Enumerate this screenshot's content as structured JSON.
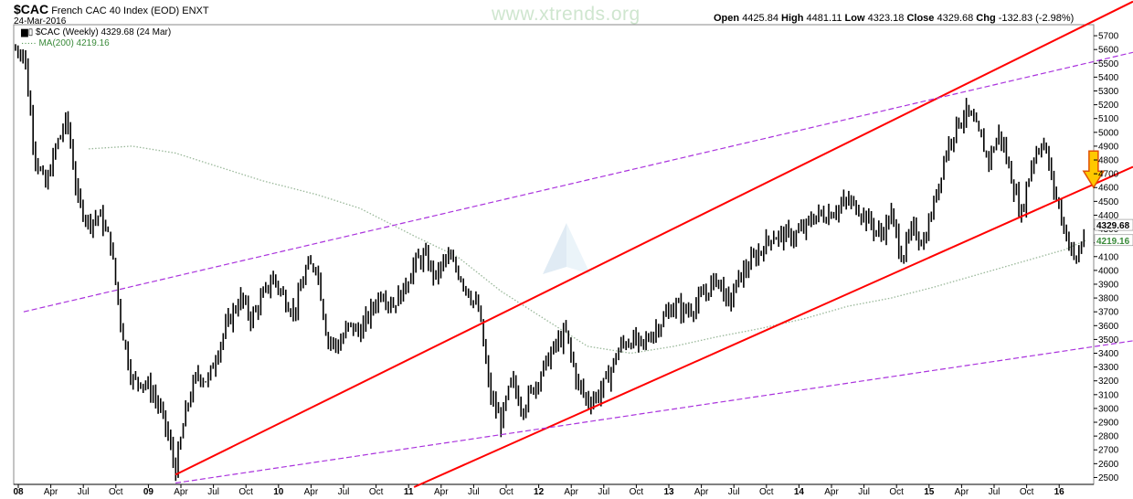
{
  "header": {
    "symbol": "$CAC",
    "name": "French CAC 40 Index (EOD)",
    "exchange": "ENXT",
    "date": "24-Mar-2016",
    "watermark": "www.xtrends.org",
    "ohlc": {
      "open_label": "Open",
      "open": "4425.84",
      "high_label": "High",
      "high": "4481.11",
      "low_label": "Low",
      "low": "4323.18",
      "close_label": "Close",
      "close": "4329.68",
      "chg_label": "Chg",
      "chg": "-132.83 (-2.98%)"
    }
  },
  "legend": {
    "price": "$CAC (Weekly) 4329.68 (24 Mar)",
    "ma": "MA(200) 4219.16"
  },
  "chart_data": {
    "type": "line",
    "title": "$CAC French CAC 40 Index (EOD) ENXT",
    "frequency": "Weekly",
    "x_ticks": [
      {
        "label": "08",
        "year": 2008,
        "m": 0
      },
      {
        "label": "Apr",
        "year": 2008,
        "m": 3
      },
      {
        "label": "Jul",
        "year": 2008,
        "m": 6
      },
      {
        "label": "Oct",
        "year": 2008,
        "m": 9
      },
      {
        "label": "09",
        "year": 2009,
        "m": 0
      },
      {
        "label": "Apr",
        "year": 2009,
        "m": 3
      },
      {
        "label": "Jul",
        "year": 2009,
        "m": 6
      },
      {
        "label": "Oct",
        "year": 2009,
        "m": 9
      },
      {
        "label": "10",
        "year": 2010,
        "m": 0
      },
      {
        "label": "Apr",
        "year": 2010,
        "m": 3
      },
      {
        "label": "Jul",
        "year": 2010,
        "m": 6
      },
      {
        "label": "Oct",
        "year": 2010,
        "m": 9
      },
      {
        "label": "11",
        "year": 2011,
        "m": 0
      },
      {
        "label": "Apr",
        "year": 2011,
        "m": 3
      },
      {
        "label": "Jul",
        "year": 2011,
        "m": 6
      },
      {
        "label": "Oct",
        "year": 2011,
        "m": 9
      },
      {
        "label": "12",
        "year": 2012,
        "m": 0
      },
      {
        "label": "Apr",
        "year": 2012,
        "m": 3
      },
      {
        "label": "Jul",
        "year": 2012,
        "m": 6
      },
      {
        "label": "Oct",
        "year": 2012,
        "m": 9
      },
      {
        "label": "13",
        "year": 2013,
        "m": 0
      },
      {
        "label": "Apr",
        "year": 2013,
        "m": 3
      },
      {
        "label": "Jul",
        "year": 2013,
        "m": 6
      },
      {
        "label": "Oct",
        "year": 2013,
        "m": 9
      },
      {
        "label": "14",
        "year": 2014,
        "m": 0
      },
      {
        "label": "Apr",
        "year": 2014,
        "m": 3
      },
      {
        "label": "Jul",
        "year": 2014,
        "m": 6
      },
      {
        "label": "Oct",
        "year": 2014,
        "m": 9
      },
      {
        "label": "15",
        "year": 2015,
        "m": 0
      },
      {
        "label": "Apr",
        "year": 2015,
        "m": 3
      },
      {
        "label": "Jul",
        "year": 2015,
        "m": 6
      },
      {
        "label": "Oct",
        "year": 2015,
        "m": 9
      },
      {
        "label": "16",
        "year": 2016,
        "m": 0
      }
    ],
    "y_ticks": [
      2500,
      2600,
      2700,
      2800,
      2900,
      3000,
      3100,
      3200,
      3300,
      3400,
      3500,
      3600,
      3700,
      3800,
      3900,
      4000,
      4100,
      4200,
      4300,
      4400,
      4500,
      4600,
      4700,
      4800,
      4900,
      5000,
      5100,
      5200,
      5300,
      5400,
      5500,
      5600,
      5700
    ],
    "ylim": [
      2450,
      5780
    ],
    "y_axis_side": "right",
    "price_label": "4329.68",
    "ma_label": "4219.16",
    "price_series": {
      "name": "$CAC (Weekly)",
      "color": "#000000",
      "points": [
        [
          "2008-01",
          5600
        ],
        [
          "2008-02",
          4850
        ],
        [
          "2008-03",
          4600
        ],
        [
          "2008-04",
          4900
        ],
        [
          "2008-05",
          5100
        ],
        [
          "2008-06",
          4500
        ],
        [
          "2008-07",
          4350
        ],
        [
          "2008-08",
          4400
        ],
        [
          "2008-09",
          4200
        ],
        [
          "2008-10",
          3600
        ],
        [
          "2008-11",
          3200
        ],
        [
          "2008-12",
          3200
        ],
        [
          "2009-01",
          3100
        ],
        [
          "2009-02",
          2900
        ],
        [
          "2009-03",
          2550
        ],
        [
          "2009-04",
          3000
        ],
        [
          "2009-05",
          3250
        ],
        [
          "2009-06",
          3200
        ],
        [
          "2009-07",
          3450
        ],
        [
          "2009-08",
          3650
        ],
        [
          "2009-09",
          3800
        ],
        [
          "2009-10",
          3650
        ],
        [
          "2009-11",
          3800
        ],
        [
          "2009-12",
          3950
        ],
        [
          "2010-01",
          3800
        ],
        [
          "2010-02",
          3700
        ],
        [
          "2010-03",
          4000
        ],
        [
          "2010-04",
          4050
        ],
        [
          "2010-05",
          3500
        ],
        [
          "2010-06",
          3450
        ],
        [
          "2010-07",
          3600
        ],
        [
          "2010-08",
          3550
        ],
        [
          "2010-09",
          3700
        ],
        [
          "2010-10",
          3850
        ],
        [
          "2010-11",
          3750
        ],
        [
          "2010-12",
          3850
        ],
        [
          "2011-01",
          4050
        ],
        [
          "2011-02",
          4100
        ],
        [
          "2011-03",
          3950
        ],
        [
          "2011-04",
          4100
        ],
        [
          "2011-05",
          4000
        ],
        [
          "2011-06",
          3850
        ],
        [
          "2011-07",
          3700
        ],
        [
          "2011-08",
          3100
        ],
        [
          "2011-09",
          2900
        ],
        [
          "2011-10",
          3200
        ],
        [
          "2011-11",
          3000
        ],
        [
          "2011-12",
          3150
        ],
        [
          "2012-01",
          3300
        ],
        [
          "2012-02",
          3450
        ],
        [
          "2012-03",
          3550
        ],
        [
          "2012-04",
          3200
        ],
        [
          "2012-05",
          3050
        ],
        [
          "2012-06",
          3100
        ],
        [
          "2012-07",
          3250
        ],
        [
          "2012-08",
          3450
        ],
        [
          "2012-09",
          3500
        ],
        [
          "2012-10",
          3450
        ],
        [
          "2012-11",
          3550
        ],
        [
          "2012-12",
          3650
        ],
        [
          "2013-01",
          3750
        ],
        [
          "2013-02",
          3700
        ],
        [
          "2013-03",
          3750
        ],
        [
          "2013-04",
          3850
        ],
        [
          "2013-05",
          3950
        ],
        [
          "2013-06",
          3750
        ],
        [
          "2013-07",
          3950
        ],
        [
          "2013-08",
          4050
        ],
        [
          "2013-09",
          4150
        ],
        [
          "2013-10",
          4250
        ],
        [
          "2013-11",
          4250
        ],
        [
          "2013-12",
          4250
        ],
        [
          "2014-01",
          4300
        ],
        [
          "2014-02",
          4400
        ],
        [
          "2014-03",
          4400
        ],
        [
          "2014-04",
          4450
        ],
        [
          "2014-05",
          4500
        ],
        [
          "2014-06",
          4450
        ],
        [
          "2014-07",
          4350
        ],
        [
          "2014-08",
          4250
        ],
        [
          "2014-09",
          4400
        ],
        [
          "2014-10",
          4100
        ],
        [
          "2014-11",
          4300
        ],
        [
          "2014-12",
          4200
        ],
        [
          "2015-01",
          4500
        ],
        [
          "2015-02",
          4850
        ],
        [
          "2015-03",
          5050
        ],
        [
          "2015-04",
          5150
        ],
        [
          "2015-05",
          5000
        ],
        [
          "2015-06",
          4800
        ],
        [
          "2015-07",
          5000
        ],
        [
          "2015-08",
          4700
        ],
        [
          "2015-09",
          4400
        ],
        [
          "2015-10",
          4800
        ],
        [
          "2015-11",
          4950
        ],
        [
          "2015-12",
          4600
        ],
        [
          "2016-01",
          4300
        ],
        [
          "2016-02",
          4050
        ],
        [
          "2016-03",
          4330
        ]
      ]
    },
    "ma_series": {
      "name": "MA(200)",
      "color": "#9ab89a",
      "points": [
        [
          "2008-07",
          4880
        ],
        [
          "2008-11",
          4900
        ],
        [
          "2009-03",
          4850
        ],
        [
          "2009-07",
          4750
        ],
        [
          "2009-11",
          4650
        ],
        [
          "2010-04",
          4550
        ],
        [
          "2010-08",
          4450
        ],
        [
          "2011-01",
          4250
        ],
        [
          "2011-05",
          4100
        ],
        [
          "2011-09",
          3850
        ],
        [
          "2012-01",
          3650
        ],
        [
          "2012-05",
          3450
        ],
        [
          "2012-09",
          3400
        ],
        [
          "2013-01",
          3450
        ],
        [
          "2013-05",
          3520
        ],
        [
          "2013-09",
          3580
        ],
        [
          "2014-01",
          3650
        ],
        [
          "2014-05",
          3740
        ],
        [
          "2014-09",
          3800
        ],
        [
          "2015-01",
          3880
        ],
        [
          "2015-05",
          3970
        ],
        [
          "2015-09",
          4060
        ],
        [
          "2016-01",
          4150
        ],
        [
          "2016-03",
          4219
        ]
      ]
    },
    "trendlines": [
      {
        "name": "upper channel",
        "color": "#ff0000",
        "style": "solid",
        "from": [
          "2009-03",
          2520
        ],
        "to": [
          "2016-03",
          5780
        ]
      },
      {
        "name": "lower channel",
        "color": "#ff0000",
        "style": "solid",
        "from": [
          "2011-01",
          2430
        ],
        "to": [
          "2016-03",
          4600
        ]
      },
      {
        "name": "upper wedge",
        "color": "#aa33dd",
        "style": "dashed",
        "from": [
          "2008-01",
          3700
        ],
        "to": [
          "2016-03",
          5500
        ]
      },
      {
        "name": "lower wedge",
        "color": "#aa33dd",
        "style": "dashed",
        "from": [
          "2009-03",
          2460
        ],
        "to": [
          "2016-03",
          3440
        ]
      }
    ],
    "annotations": [
      {
        "type": "arrow-down",
        "color": "#ffc800",
        "at": [
          "2016-03",
          4600
        ]
      }
    ],
    "grid": false,
    "legend_position": "top-left"
  }
}
